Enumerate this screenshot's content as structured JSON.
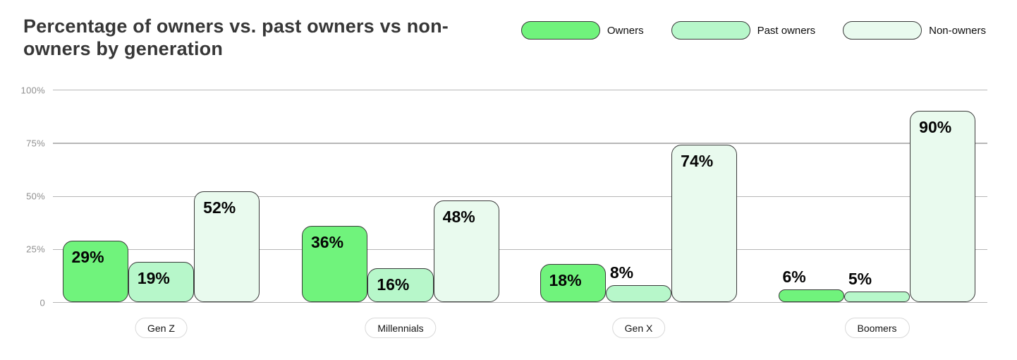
{
  "title": "Percentage of owners vs. past owners vs non-owners by generation",
  "colors": {
    "owners": "#70F37C",
    "past_owners": "#B7F7CA",
    "non_owners": "#E9FAEE",
    "bar_border": "#3a3a3a",
    "gridline": "#b7b7b7",
    "title_text": "#373737",
    "tick_text": "#8f8f8f"
  },
  "legend": {
    "items": [
      {
        "label": "Owners",
        "color": "#70F37C"
      },
      {
        "label": "Past owners",
        "color": "#B7F7CA"
      },
      {
        "label": "Non-owners",
        "color": "#E9FAEE"
      }
    ]
  },
  "chart_data": {
    "type": "bar",
    "title": "Percentage of owners vs. past owners vs non-owners by generation",
    "categories": [
      "Gen Z",
      "Millennials",
      "Gen X",
      "Boomers"
    ],
    "series": [
      {
        "name": "Owners",
        "color": "#70F37C",
        "values": [
          29,
          36,
          18,
          6
        ]
      },
      {
        "name": "Past owners",
        "color": "#B7F7CA",
        "values": [
          19,
          16,
          8,
          5
        ]
      },
      {
        "name": "Non-owners",
        "color": "#E9FAEE",
        "values": [
          52,
          48,
          74,
          90
        ]
      }
    ],
    "value_suffix": "%",
    "xlabel": "",
    "ylabel": "",
    "ylim": [
      0,
      100
    ],
    "y_ticks": [
      {
        "value": 100,
        "label": "100%"
      },
      {
        "value": 75,
        "label": "75%"
      },
      {
        "value": 50,
        "label": "50%"
      },
      {
        "value": 25,
        "label": "25%"
      },
      {
        "value": 0,
        "label": "0"
      }
    ],
    "grid": true,
    "legend_position": "top-right"
  }
}
